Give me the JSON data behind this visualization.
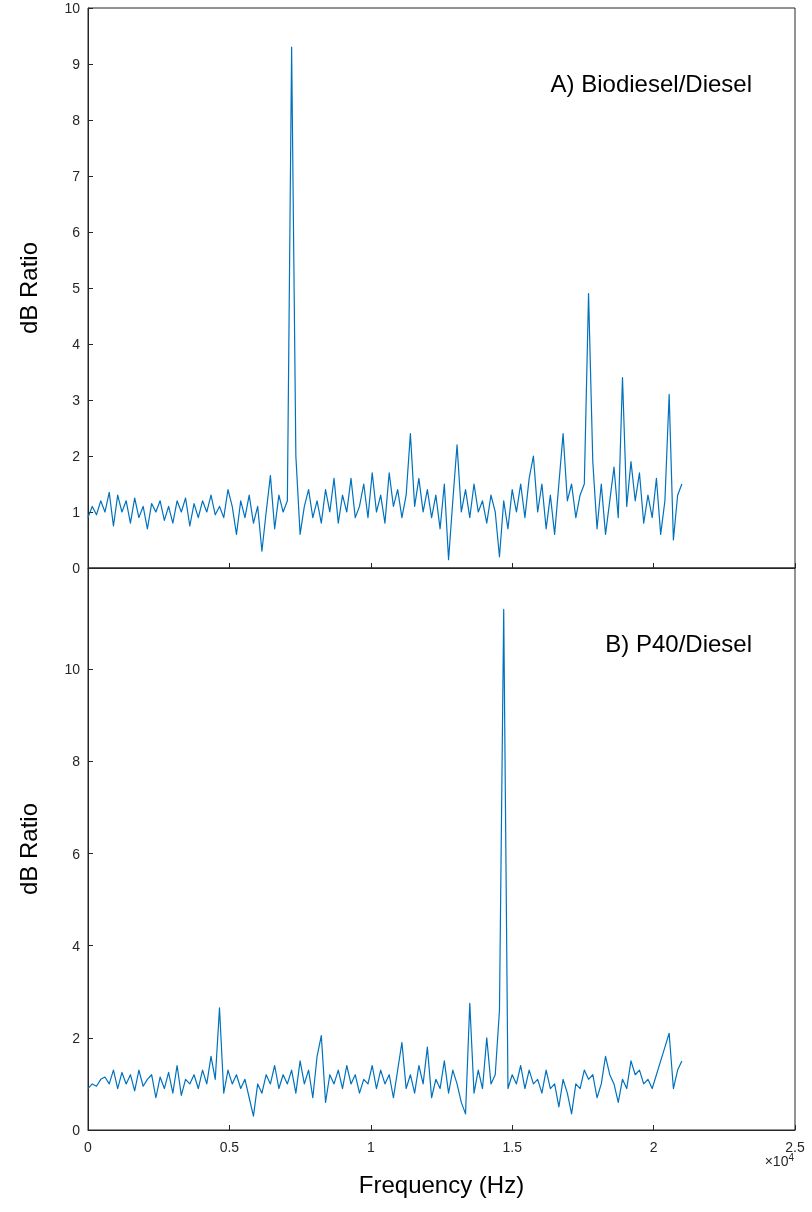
{
  "chart_data": [
    {
      "type": "line",
      "title": "A) Biodiesel/Diesel",
      "ylabel": "dB Ratio",
      "xlim": [
        0,
        2.5
      ],
      "xticks": [
        0,
        0.5,
        1,
        1.5,
        2,
        2.5
      ],
      "ylim": [
        0,
        10
      ],
      "yticks": [
        0,
        1,
        2,
        3,
        4,
        5,
        6,
        7,
        8,
        9,
        10
      ],
      "tick_labels": "y",
      "grid": false,
      "marker": "none",
      "x": [
        0,
        0.015,
        0.03,
        0.045,
        0.06,
        0.075,
        0.09,
        0.105,
        0.12,
        0.135,
        0.15,
        0.165,
        0.18,
        0.195,
        0.21,
        0.225,
        0.24,
        0.255,
        0.27,
        0.285,
        0.3,
        0.315,
        0.33,
        0.345,
        0.36,
        0.375,
        0.39,
        0.405,
        0.42,
        0.435,
        0.45,
        0.465,
        0.48,
        0.495,
        0.51,
        0.525,
        0.54,
        0.555,
        0.57,
        0.585,
        0.6,
        0.615,
        0.63,
        0.645,
        0.66,
        0.675,
        0.69,
        0.705,
        0.72,
        0.735,
        0.75,
        0.765,
        0.78,
        0.795,
        0.81,
        0.825,
        0.84,
        0.855,
        0.87,
        0.885,
        0.9,
        0.915,
        0.93,
        0.945,
        0.96,
        0.975,
        0.99,
        1.005,
        1.02,
        1.035,
        1.05,
        1.065,
        1.08,
        1.095,
        1.11,
        1.125,
        1.14,
        1.155,
        1.17,
        1.185,
        1.2,
        1.215,
        1.23,
        1.245,
        1.26,
        1.275,
        1.29,
        1.305,
        1.32,
        1.335,
        1.35,
        1.365,
        1.38,
        1.395,
        1.41,
        1.425,
        1.44,
        1.455,
        1.47,
        1.485,
        1.5,
        1.515,
        1.53,
        1.545,
        1.56,
        1.575,
        1.59,
        1.605,
        1.62,
        1.635,
        1.65,
        1.665,
        1.68,
        1.695,
        1.71,
        1.725,
        1.74,
        1.755,
        1.77,
        1.785,
        1.8,
        1.815,
        1.83,
        1.845,
        1.86,
        1.875,
        1.89,
        1.905,
        1.92,
        1.935,
        1.95,
        1.965,
        1.98,
        1.995,
        2.01,
        2.025,
        2.04,
        2.055,
        2.07,
        2.085,
        2.1
      ],
      "series": [
        {
          "color": "#0072bd",
          "values": [
            0.9,
            1.1,
            0.95,
            1.2,
            1.0,
            1.35,
            0.75,
            1.3,
            1.0,
            1.2,
            0.8,
            1.25,
            0.9,
            1.1,
            0.7,
            1.15,
            1.0,
            1.2,
            0.85,
            1.1,
            0.8,
            1.2,
            1.0,
            1.25,
            0.75,
            1.15,
            0.9,
            1.2,
            1.0,
            1.3,
            0.95,
            1.1,
            0.9,
            1.4,
            1.1,
            0.6,
            1.2,
            0.9,
            1.3,
            0.8,
            1.1,
            0.3,
            1.0,
            1.65,
            0.7,
            1.3,
            1.0,
            1.2,
            9.3,
            2.0,
            0.6,
            1.1,
            1.4,
            0.9,
            1.2,
            0.8,
            1.4,
            1.0,
            1.6,
            0.8,
            1.3,
            1.0,
            1.6,
            0.9,
            1.1,
            1.5,
            0.9,
            1.7,
            1.0,
            1.3,
            0.8,
            1.7,
            1.1,
            1.4,
            0.9,
            1.3,
            2.4,
            1.1,
            1.6,
            1.0,
            1.4,
            0.9,
            1.3,
            0.7,
            1.5,
            0.15,
            1.2,
            2.2,
            1.0,
            1.4,
            0.9,
            1.5,
            1.0,
            1.2,
            0.8,
            1.3,
            1.0,
            0.2,
            1.2,
            0.7,
            1.4,
            1.0,
            1.5,
            0.9,
            1.6,
            2.0,
            1.0,
            1.5,
            0.7,
            1.3,
            0.6,
            1.5,
            2.4,
            1.2,
            1.5,
            0.9,
            1.3,
            1.5,
            4.9,
            1.9,
            0.7,
            1.5,
            0.6,
            1.2,
            1.8,
            0.9,
            3.4,
            1.1,
            1.9,
            1.2,
            1.7,
            0.8,
            1.3,
            0.9,
            1.6,
            0.6,
            1.2,
            3.1,
            0.5,
            1.3,
            1.5
          ]
        }
      ]
    },
    {
      "type": "line",
      "title": "B) P40/Diesel",
      "xlabel": "Frequency (Hz)",
      "ylabel": "dB Ratio",
      "annotations": [
        "×10$^{4}$"
      ],
      "xlim": [
        0,
        2.5
      ],
      "xticks": [
        0,
        0.5,
        1,
        1.5,
        2,
        2.5
      ],
      "ylim": [
        0,
        12.2
      ],
      "yticks": [
        0,
        2,
        4,
        6,
        8,
        10
      ],
      "grid": false,
      "marker": "none",
      "x": [
        0,
        0.015,
        0.03,
        0.045,
        0.06,
        0.075,
        0.09,
        0.105,
        0.12,
        0.135,
        0.15,
        0.165,
        0.18,
        0.195,
        0.21,
        0.225,
        0.24,
        0.255,
        0.27,
        0.285,
        0.3,
        0.315,
        0.33,
        0.345,
        0.36,
        0.375,
        0.39,
        0.405,
        0.42,
        0.435,
        0.45,
        0.465,
        0.48,
        0.495,
        0.51,
        0.525,
        0.54,
        0.555,
        0.57,
        0.585,
        0.6,
        0.615,
        0.63,
        0.645,
        0.66,
        0.675,
        0.69,
        0.705,
        0.72,
        0.735,
        0.75,
        0.765,
        0.78,
        0.795,
        0.81,
        0.825,
        0.84,
        0.855,
        0.87,
        0.885,
        0.9,
        0.915,
        0.93,
        0.945,
        0.96,
        0.975,
        0.99,
        1.005,
        1.02,
        1.035,
        1.05,
        1.065,
        1.08,
        1.095,
        1.11,
        1.125,
        1.14,
        1.155,
        1.17,
        1.185,
        1.2,
        1.215,
        1.23,
        1.245,
        1.26,
        1.275,
        1.29,
        1.305,
        1.32,
        1.335,
        1.35,
        1.365,
        1.38,
        1.395,
        1.41,
        1.425,
        1.44,
        1.455,
        1.47,
        1.485,
        1.5,
        1.515,
        1.53,
        1.545,
        1.56,
        1.575,
        1.59,
        1.605,
        1.62,
        1.635,
        1.65,
        1.665,
        1.68,
        1.695,
        1.71,
        1.725,
        1.74,
        1.755,
        1.77,
        1.785,
        1.8,
        1.815,
        1.83,
        1.845,
        1.86,
        1.875,
        1.89,
        1.905,
        1.92,
        1.935,
        1.95,
        1.965,
        1.98,
        1.995,
        2.01,
        2.025,
        2.04,
        2.055,
        2.07,
        2.085,
        2.1
      ],
      "series": [
        {
          "color": "#0072bd",
          "values": [
            0.9,
            1.0,
            0.95,
            1.1,
            1.15,
            1.0,
            1.3,
            0.9,
            1.25,
            1.0,
            1.2,
            0.85,
            1.3,
            0.95,
            1.1,
            1.2,
            0.7,
            1.15,
            0.9,
            1.25,
            0.8,
            1.4,
            0.75,
            1.1,
            1.0,
            1.2,
            0.9,
            1.3,
            1.0,
            1.6,
            1.1,
            2.65,
            0.8,
            1.3,
            1.0,
            1.2,
            0.9,
            1.1,
            0.7,
            0.3,
            1.0,
            0.8,
            1.2,
            1.0,
            1.4,
            0.9,
            1.2,
            1.0,
            1.3,
            0.8,
            1.5,
            1.0,
            1.3,
            0.7,
            1.6,
            2.05,
            0.6,
            1.2,
            1.0,
            1.3,
            0.9,
            1.4,
            1.0,
            1.2,
            0.8,
            1.1,
            1.0,
            1.4,
            0.9,
            1.3,
            1.0,
            1.2,
            0.7,
            1.3,
            1.9,
            0.9,
            1.2,
            0.8,
            1.4,
            1.0,
            1.8,
            0.7,
            1.1,
            0.9,
            1.5,
            0.8,
            1.3,
            1.0,
            0.6,
            0.35,
            2.75,
            0.8,
            1.3,
            0.9,
            2.0,
            1.0,
            1.2,
            2.6,
            11.3,
            0.9,
            1.2,
            1.0,
            1.4,
            0.9,
            1.3,
            1.0,
            1.1,
            0.8,
            1.3,
            0.9,
            1.0,
            0.5,
            1.1,
            0.8,
            0.35,
            1.0,
            0.9,
            1.3,
            1.1,
            1.2,
            0.7,
            1.0,
            1.6,
            1.2,
            1.0,
            0.6,
            1.1,
            0.9,
            1.5,
            1.2,
            1.3,
            1.0,
            1.1,
            0.9,
            1.2,
            1.5,
            1.8,
            2.1,
            0.9,
            1.3,
            1.5
          ]
        }
      ]
    }
  ]
}
